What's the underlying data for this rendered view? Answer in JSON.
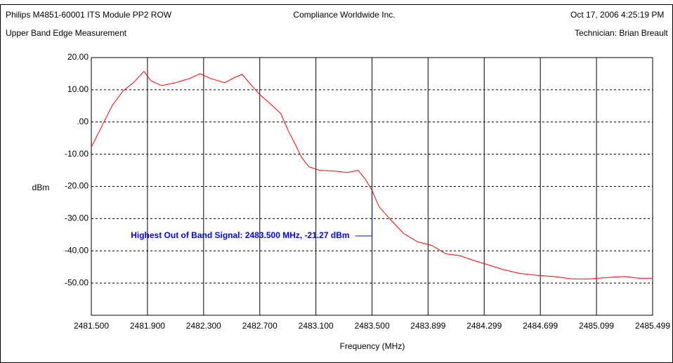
{
  "header": {
    "left": "Philips M4851-60001 ITS Module PP2 ROW",
    "center": "Compliance Worldwide Inc.",
    "right": "Oct 17, 2006  4:25:19 PM",
    "subtitle": "Upper Band Edge Measurement",
    "technician": "Technician: Brian Breault"
  },
  "chart_data": {
    "type": "line",
    "x_label": "Frequency (MHz)",
    "y_label": "dBm",
    "annotation": "Highest Out of Band Signal: 2483.500 MHz, -21.27 dBm",
    "marker": {
      "x": 2483.5,
      "y": -21.27
    },
    "xlim": [
      2481.5,
      2485.499
    ],
    "ylim": [
      -60,
      20
    ],
    "xticks": [
      {
        "value": 2481.5,
        "label": "2481.500"
      },
      {
        "value": 2481.9,
        "label": "2481.900"
      },
      {
        "value": 2482.3,
        "label": "2482.300"
      },
      {
        "value": 2482.7,
        "label": "2482.700"
      },
      {
        "value": 2483.1,
        "label": "2483.100"
      },
      {
        "value": 2483.5,
        "label": "2483.500"
      },
      {
        "value": 2483.899,
        "label": "2483.899"
      },
      {
        "value": 2484.299,
        "label": "2484.299"
      },
      {
        "value": 2484.699,
        "label": "2484.699"
      },
      {
        "value": 2485.099,
        "label": "2485.099"
      },
      {
        "value": 2485.499,
        "label": "2485.499"
      }
    ],
    "yticks": [
      {
        "value": 20,
        "label": "20.00"
      },
      {
        "value": 10,
        "label": "10.00"
      },
      {
        "value": 0,
        "label": ".00"
      },
      {
        "value": -10,
        "label": "-10.00"
      },
      {
        "value": -20,
        "label": "-20.00"
      },
      {
        "value": -30,
        "label": "-30.00"
      },
      {
        "value": -40,
        "label": "-40.00"
      },
      {
        "value": -50,
        "label": "-50.00"
      }
    ],
    "grid": true,
    "series": [
      {
        "color": "#ff0000",
        "x": [
          2481.5,
          2481.575,
          2481.65,
          2481.725,
          2481.8,
          2481.875,
          2481.925,
          2482.0,
          2482.1,
          2482.2,
          2482.275,
          2482.35,
          2482.45,
          2482.525,
          2482.575,
          2482.625,
          2482.7,
          2482.775,
          2482.85,
          2482.9,
          2482.95,
          2483.0,
          2483.05,
          2483.125,
          2483.225,
          2483.325,
          2483.4,
          2483.45,
          2483.5,
          2483.55,
          2483.625,
          2483.725,
          2483.825,
          2483.925,
          2484.025,
          2484.125,
          2484.225,
          2484.325,
          2484.425,
          2484.55,
          2484.675,
          2484.8,
          2484.925,
          2485.05,
          2485.175,
          2485.3,
          2485.4,
          2485.495
        ],
        "values": [
          -7.8,
          -1.3,
          5.2,
          9.6,
          12.2,
          15.7,
          12.8,
          11.3,
          12.2,
          13.5,
          15.0,
          13.5,
          12.2,
          13.9,
          14.8,
          12.2,
          8.5,
          5.7,
          2.6,
          -2.4,
          -6.7,
          -11.1,
          -13.9,
          -15.0,
          -15.2,
          -15.7,
          -15.0,
          -17.6,
          -21.27,
          -26.3,
          -30.0,
          -34.6,
          -37.2,
          -38.3,
          -40.9,
          -41.5,
          -43.0,
          -44.3,
          -45.7,
          -47.0,
          -47.6,
          -48.0,
          -48.7,
          -48.7,
          -48.3,
          -48.0,
          -48.5,
          -48.5
        ]
      }
    ]
  }
}
